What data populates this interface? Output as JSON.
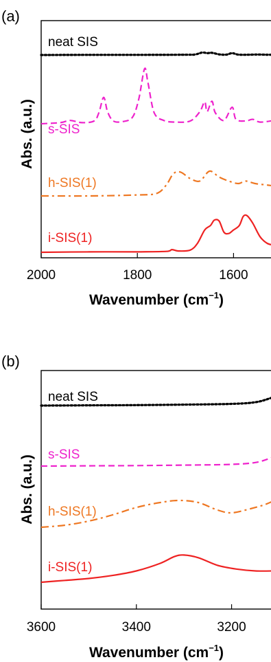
{
  "chart_data": [
    {
      "panel": "(a)",
      "type": "line",
      "xlabel": "Wavenumber (cm",
      "xlabel_sup": "−1",
      "xlabel_close": ")",
      "ylabel": "Abs. (a.u.)",
      "xlim": [
        2000,
        1515
      ],
      "xticks": [
        2000,
        1800,
        1600
      ],
      "xtick_labels": [
        "2000",
        "1800",
        "1600"
      ],
      "grid": false,
      "series": [
        {
          "name": "neat SIS",
          "color": "#000000",
          "dash": "dotted",
          "points": [
            [
              2000,
              0
            ],
            [
              1900,
              0.01
            ],
            [
              1800,
              0.01
            ],
            [
              1700,
              0.02
            ],
            [
              1680,
              0.04
            ],
            [
              1665,
              0.2
            ],
            [
              1655,
              0.15
            ],
            [
              1645,
              0.18
            ],
            [
              1630,
              0.05
            ],
            [
              1615,
              0.03
            ],
            [
              1603,
              0.15
            ],
            [
              1590,
              0.03
            ],
            [
              1570,
              0.02
            ],
            [
              1550,
              0.04
            ],
            [
              1530,
              0.02
            ],
            [
              1515,
              0.03
            ]
          ]
        },
        {
          "name": "s-SIS",
          "color": "#ee22cc",
          "dash": "dashed",
          "points": [
            [
              2000,
              0
            ],
            [
              1960,
              0.02
            ],
            [
              1940,
              0.06
            ],
            [
              1915,
              0.02
            ],
            [
              1890,
              0.05
            ],
            [
              1880,
              0.2
            ],
            [
              1870,
              0.48
            ],
            [
              1862,
              0.22
            ],
            [
              1850,
              0.05
            ],
            [
              1830,
              0.04
            ],
            [
              1810,
              0.12
            ],
            [
              1797,
              0.45
            ],
            [
              1785,
              1.0
            ],
            [
              1778,
              0.75
            ],
            [
              1765,
              0.2
            ],
            [
              1745,
              0.06
            ],
            [
              1720,
              0.03
            ],
            [
              1690,
              0.05
            ],
            [
              1670,
              0.22
            ],
            [
              1660,
              0.4
            ],
            [
              1655,
              0.22
            ],
            [
              1645,
              0.41
            ],
            [
              1638,
              0.2
            ],
            [
              1620,
              0.06
            ],
            [
              1603,
              0.3
            ],
            [
              1595,
              0.08
            ],
            [
              1575,
              0.05
            ],
            [
              1560,
              0.08
            ],
            [
              1545,
              0.03
            ],
            [
              1515,
              0.06
            ]
          ]
        },
        {
          "name": "h-SIS(1)",
          "color": "#ee7722",
          "dash": "dashdot",
          "points": [
            [
              2000,
              0
            ],
            [
              1900,
              0
            ],
            [
              1800,
              0.02
            ],
            [
              1760,
              0.05
            ],
            [
              1740,
              0.22
            ],
            [
              1725,
              0.45
            ],
            [
              1710,
              0.48
            ],
            [
              1690,
              0.35
            ],
            [
              1670,
              0.3
            ],
            [
              1650,
              0.5
            ],
            [
              1630,
              0.38
            ],
            [
              1610,
              0.3
            ],
            [
              1590,
              0.25
            ],
            [
              1575,
              0.3
            ],
            [
              1555,
              0.25
            ],
            [
              1530,
              0.22
            ],
            [
              1515,
              0.2
            ]
          ]
        },
        {
          "name": "i-SIS(1)",
          "color": "#ee2222",
          "dash": "solid",
          "points": [
            [
              2000,
              0
            ],
            [
              1900,
              0.01
            ],
            [
              1800,
              0.01
            ],
            [
              1740,
              0.02
            ],
            [
              1728,
              0.06
            ],
            [
              1715,
              0.03
            ],
            [
              1690,
              0.05
            ],
            [
              1675,
              0.2
            ],
            [
              1660,
              0.5
            ],
            [
              1648,
              0.6
            ],
            [
              1640,
              0.72
            ],
            [
              1630,
              0.7
            ],
            [
              1620,
              0.45
            ],
            [
              1610,
              0.42
            ],
            [
              1600,
              0.5
            ],
            [
              1588,
              0.6
            ],
            [
              1580,
              0.8
            ],
            [
              1572,
              0.82
            ],
            [
              1560,
              0.65
            ],
            [
              1545,
              0.35
            ],
            [
              1530,
              0.2
            ],
            [
              1515,
              0.16
            ]
          ]
        }
      ]
    },
    {
      "panel": "(b)",
      "type": "line",
      "xlabel": "Wavenumber (cm",
      "xlabel_sup": "−1",
      "xlabel_close": ")",
      "ylabel": "Abs. (a.u.)",
      "xlim": [
        3600,
        3110
      ],
      "xticks": [
        3600,
        3400,
        3200
      ],
      "xtick_labels": [
        "3600",
        "3400",
        "3200"
      ],
      "grid": false,
      "series": [
        {
          "name": "neat SIS",
          "color": "#000000",
          "dash": "dotted",
          "points": [
            [
              3600,
              0
            ],
            [
              3500,
              0.01
            ],
            [
              3400,
              0.02
            ],
            [
              3300,
              0.04
            ],
            [
              3200,
              0.07
            ],
            [
              3150,
              0.14
            ],
            [
              3120,
              0.3
            ],
            [
              3110,
              0.4
            ]
          ]
        },
        {
          "name": "s-SIS",
          "color": "#ee22cc",
          "dash": "dashed",
          "points": [
            [
              3600,
              0
            ],
            [
              3500,
              0.01
            ],
            [
              3400,
              0.02
            ],
            [
              3300,
              0.04
            ],
            [
              3200,
              0.07
            ],
            [
              3150,
              0.15
            ],
            [
              3120,
              0.32
            ],
            [
              3110,
              0.42
            ]
          ]
        },
        {
          "name": "h-SIS(1)",
          "color": "#ee7722",
          "dash": "dashdot",
          "points": [
            [
              3600,
              0
            ],
            [
              3550,
              0.05
            ],
            [
              3500,
              0.15
            ],
            [
              3450,
              0.3
            ],
            [
              3400,
              0.48
            ],
            [
              3350,
              0.6
            ],
            [
              3310,
              0.65
            ],
            [
              3270,
              0.6
            ],
            [
              3230,
              0.42
            ],
            [
              3200,
              0.35
            ],
            [
              3160,
              0.45
            ],
            [
              3130,
              0.55
            ],
            [
              3110,
              0.65
            ]
          ]
        },
        {
          "name": "i-SIS(1)",
          "color": "#ee2222",
          "dash": "solid",
          "points": [
            [
              3600,
              0
            ],
            [
              3550,
              0.05
            ],
            [
              3500,
              0.1
            ],
            [
              3450,
              0.18
            ],
            [
              3400,
              0.3
            ],
            [
              3350,
              0.5
            ],
            [
              3320,
              0.68
            ],
            [
              3300,
              0.72
            ],
            [
              3270,
              0.65
            ],
            [
              3230,
              0.45
            ],
            [
              3190,
              0.35
            ],
            [
              3150,
              0.3
            ],
            [
              3110,
              0.3
            ]
          ]
        }
      ]
    }
  ]
}
